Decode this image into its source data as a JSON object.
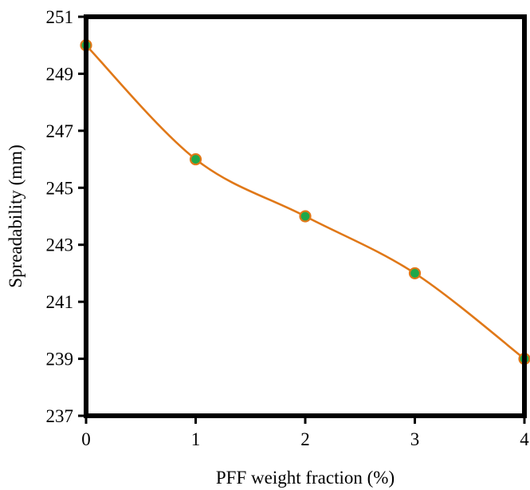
{
  "chart_data": {
    "type": "line",
    "title": "",
    "xlabel": "PFF weight fraction (%)",
    "ylabel": "Spreadability (mm)",
    "x": [
      0,
      1,
      2,
      3,
      4
    ],
    "x_ticks": [
      "0",
      "1",
      "2",
      "3",
      "4"
    ],
    "xlim": [
      0,
      4
    ],
    "y_ticks": [
      "237",
      "239",
      "241",
      "243",
      "245",
      "247",
      "249",
      "251"
    ],
    "ylim": [
      237,
      251
    ],
    "series": [
      {
        "values": [
          250,
          246,
          244,
          242,
          239
        ],
        "line_color": "#e07818",
        "marker_fill": "#1fa84a",
        "marker_edge": "#e07818",
        "smooth": true
      }
    ],
    "grid": false,
    "legend": "none",
    "frame_color": "#000000"
  }
}
